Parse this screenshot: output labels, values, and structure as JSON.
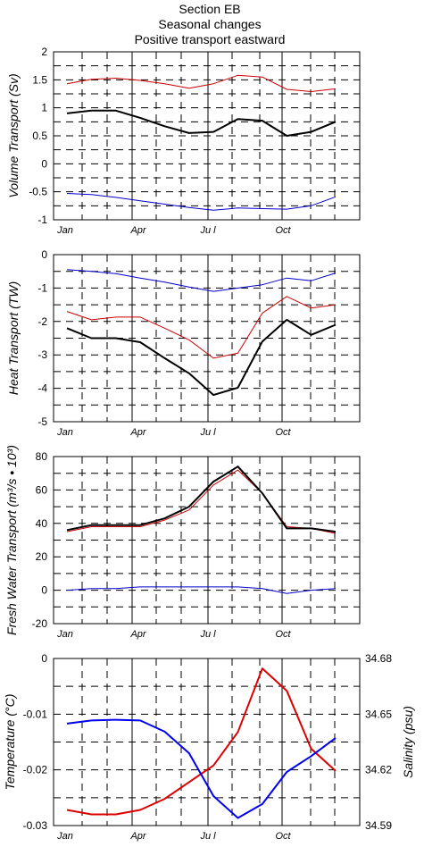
{
  "title_lines": [
    "Section EB",
    "Seasonal changes",
    "Positive transport eastward"
  ],
  "months": [
    "Jan",
    "Apr",
    "Ju l",
    "Oct"
  ],
  "chart_data": [
    {
      "type": "line",
      "ylabel": "Volume Transport (Sv)",
      "ylim": [
        -1,
        2
      ],
      "yticks": [
        2,
        1.5,
        1,
        0.5,
        0,
        -0.5,
        -1
      ],
      "x": [
        1,
        2,
        3,
        4,
        5,
        6,
        7,
        8,
        9,
        10,
        11,
        12
      ],
      "series": [
        {
          "color": "#cc0000",
          "width": 1,
          "values": [
            1.43,
            1.51,
            1.53,
            1.49,
            1.43,
            1.35,
            1.43,
            1.58,
            1.55,
            1.33,
            1.29,
            1.34
          ]
        },
        {
          "color": "#000000",
          "width": 2,
          "values": [
            0.9,
            0.95,
            0.95,
            0.82,
            0.67,
            0.55,
            0.57,
            0.8,
            0.77,
            0.5,
            0.57,
            0.75
          ]
        },
        {
          "color": "#0000cc",
          "width": 1,
          "values": [
            -0.53,
            -0.55,
            -0.6,
            -0.66,
            -0.72,
            -0.78,
            -0.83,
            -0.79,
            -0.8,
            -0.81,
            -0.75,
            -0.59
          ]
        }
      ]
    },
    {
      "type": "line",
      "ylabel": "Heat Transport (TW)",
      "ylim": [
        -5,
        0
      ],
      "yticks": [
        0,
        -1,
        -2,
        -3,
        -4,
        -5
      ],
      "x": [
        1,
        2,
        3,
        4,
        5,
        6,
        7,
        8,
        9,
        10,
        11,
        12
      ],
      "series": [
        {
          "color": "#0000cc",
          "width": 1,
          "values": [
            -0.45,
            -0.5,
            -0.57,
            -0.7,
            -0.82,
            -0.97,
            -1.1,
            -1.0,
            -0.9,
            -0.7,
            -0.78,
            -0.55
          ]
        },
        {
          "color": "#cc0000",
          "width": 1,
          "values": [
            -1.7,
            -1.95,
            -1.87,
            -1.87,
            -2.2,
            -2.55,
            -3.1,
            -2.95,
            -1.75,
            -1.25,
            -1.6,
            -1.5
          ]
        },
        {
          "color": "#000000",
          "width": 2,
          "values": [
            -2.2,
            -2.5,
            -2.5,
            -2.62,
            -3.1,
            -3.55,
            -4.2,
            -3.98,
            -2.6,
            -1.95,
            -2.4,
            -2.1
          ]
        }
      ]
    },
    {
      "type": "line",
      "ylabel": "Fresh Water Transport (m³/s • 10³)",
      "ylim": [
        -20,
        80
      ],
      "yticks": [
        80,
        60,
        40,
        20,
        0,
        -20
      ],
      "x": [
        1,
        2,
        3,
        4,
        5,
        6,
        7,
        8,
        9,
        10,
        11,
        12
      ],
      "series": [
        {
          "color": "#cc0000",
          "width": 1,
          "values": [
            35,
            38,
            38,
            38,
            42,
            48,
            63,
            72,
            58,
            38,
            37,
            34
          ]
        },
        {
          "color": "#000000",
          "width": 2,
          "values": [
            36,
            39,
            39,
            39,
            43,
            50,
            65,
            74,
            58,
            37,
            37,
            35
          ]
        },
        {
          "color": "#0000cc",
          "width": 1,
          "values": [
            0,
            1,
            1,
            2,
            2,
            2,
            2,
            2,
            1,
            -2,
            0,
            1
          ]
        }
      ]
    },
    {
      "type": "line",
      "ylabel": "Temperature (°C)",
      "ylabel_right": "Salinity (psu)",
      "ylim": [
        -0.03,
        0
      ],
      "yticks": [
        0,
        -0.01,
        -0.02,
        -0.03
      ],
      "ylim_right": [
        34.59,
        34.68
      ],
      "yticks_right": [
        34.68,
        34.65,
        34.62,
        34.59
      ],
      "x": [
        1,
        2,
        3,
        4,
        5,
        6,
        7,
        8,
        9,
        10,
        11,
        12
      ],
      "series": [
        {
          "name": "Temperature",
          "axis": "left",
          "color": "#dd0000",
          "width": 2,
          "values": [
            -0.0272,
            -0.028,
            -0.028,
            -0.0272,
            -0.0252,
            -0.0222,
            -0.0192,
            -0.0132,
            -0.0018,
            -0.0058,
            -0.0162,
            -0.0202
          ]
        },
        {
          "name": "Salinity",
          "axis": "right",
          "color": "#0000ee",
          "width": 2,
          "values": [
            34.6449,
            34.6466,
            34.647,
            34.6466,
            34.6406,
            34.629,
            34.6059,
            34.5941,
            34.6016,
            34.6189,
            34.6274,
            34.6372
          ]
        }
      ]
    }
  ]
}
